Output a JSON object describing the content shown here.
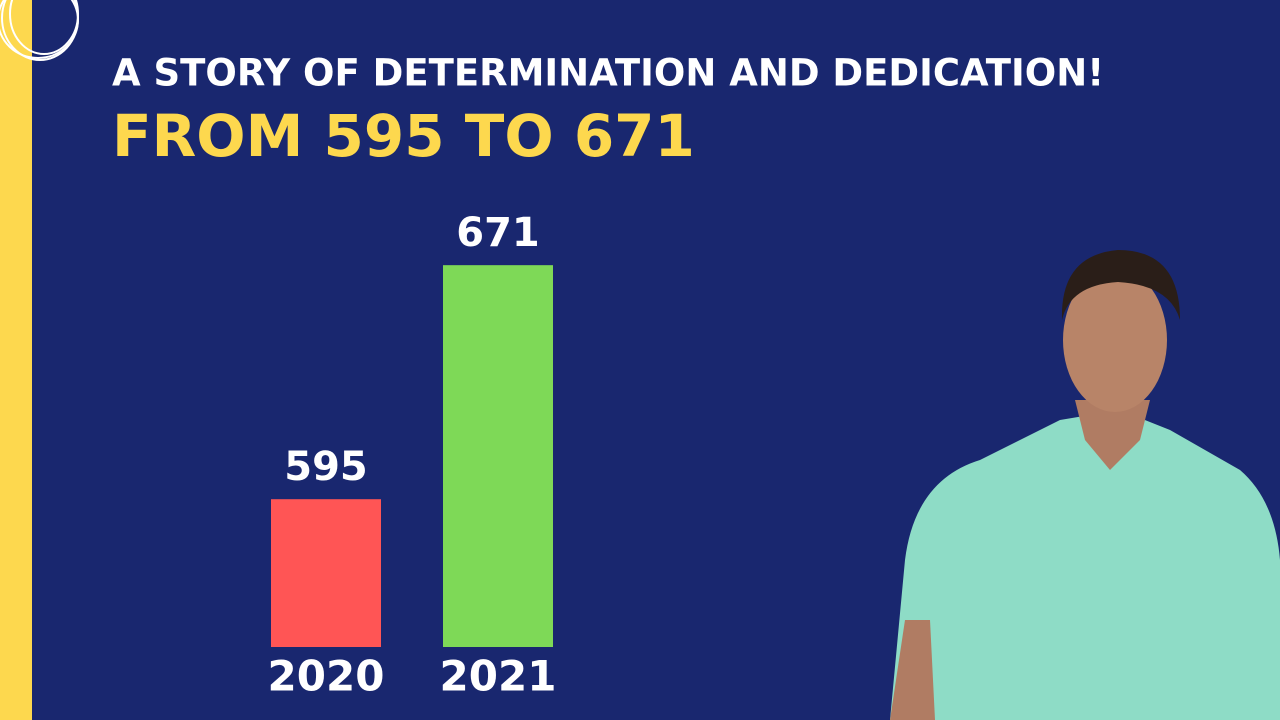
{
  "chart_data": {
    "type": "bar",
    "title": "A STORY OF DETERMINATION AND DEDICATION!",
    "subtitle": "FROM 595 TO 671",
    "categories": [
      "2020",
      "2021"
    ],
    "values": [
      595,
      671
    ],
    "colors": [
      "#ff5555",
      "#7ed957"
    ],
    "ylim": [
      547,
      692
    ]
  }
}
